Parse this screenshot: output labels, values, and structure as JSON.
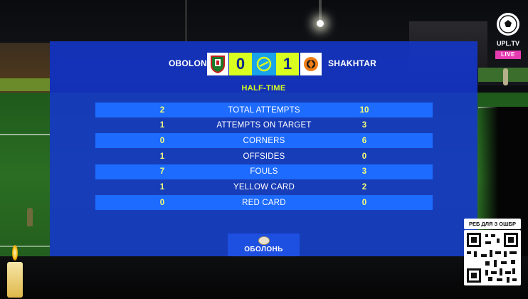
{
  "scoreboard": {
    "home_team": "OBOLON",
    "away_team": "SHAKHTAR",
    "home_score": "0",
    "away_score": "1",
    "period": "HALF-TIME",
    "home_crest_icon": "obolon-crest-icon",
    "away_crest_icon": "shakhtar-crest-icon",
    "league_icon": "upl-league-icon"
  },
  "stats": [
    {
      "label": "TOTAL ATTEMPTS",
      "home": "2",
      "away": "10"
    },
    {
      "label": "ATTEMPTS ON TARGET",
      "home": "1",
      "away": "3"
    },
    {
      "label": "CORNERS",
      "home": "0",
      "away": "6"
    },
    {
      "label": "OFFSIDES",
      "home": "1",
      "away": "0"
    },
    {
      "label": "FOULS",
      "home": "7",
      "away": "3"
    },
    {
      "label": "YELLOW CARD",
      "home": "1",
      "away": "2"
    },
    {
      "label": "RED CARD",
      "home": "0",
      "away": "0"
    }
  ],
  "sponsor": {
    "name": "ОБОЛОНЬ"
  },
  "broadcaster": {
    "name": "UPL.TV",
    "live_badge": "LIVE"
  },
  "qr": {
    "caption": "РЕБ ДЛЯ З ОШБР"
  },
  "colors": {
    "panel": "#1437cd",
    "row_highlight": "#1d6bff",
    "accent_yellow": "#d8ff1f",
    "live_pink": "#e53bb0"
  }
}
